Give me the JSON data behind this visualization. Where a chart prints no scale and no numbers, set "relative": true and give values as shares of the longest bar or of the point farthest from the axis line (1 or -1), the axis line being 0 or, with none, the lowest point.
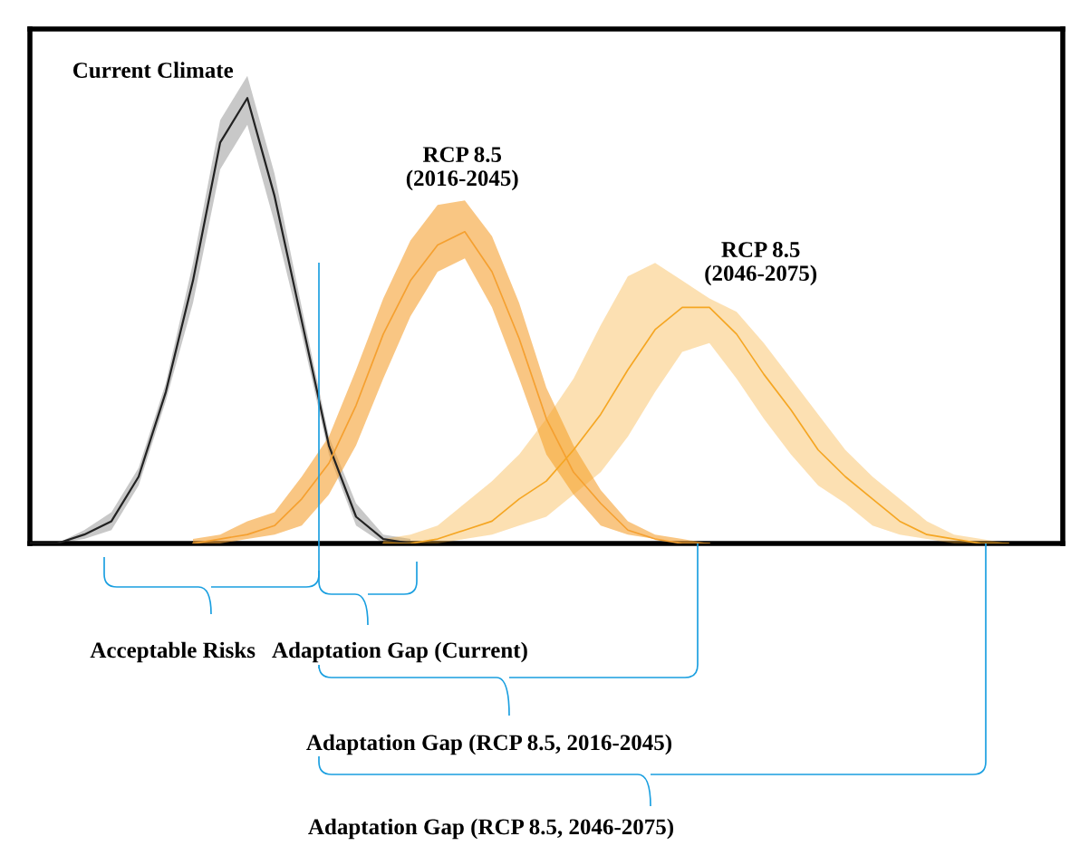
{
  "chart_data": {
    "type": "line",
    "relative": true,
    "grid": false,
    "categories": [
      null,
      null,
      null,
      null,
      null,
      null,
      null,
      null,
      null,
      null,
      null,
      null,
      null,
      null,
      null,
      null,
      null,
      null,
      null,
      null,
      null,
      null,
      null,
      null,
      null,
      null,
      null,
      null,
      null,
      null,
      null,
      null,
      null,
      null,
      null,
      null,
      null,
      null,
      null
    ],
    "series": [
      {
        "name": "Current Climate",
        "color": "#222222",
        "values": [
          0,
          0,
          0.02,
          0.05,
          0.15,
          0.34,
          0.59,
          0.9,
          1,
          0.78,
          0.5,
          0.22,
          0.06,
          0.01,
          0,
          null,
          null,
          null,
          null,
          null,
          null,
          null,
          null,
          null,
          null,
          null,
          null,
          null,
          null,
          null,
          null,
          null,
          null,
          null,
          null,
          null,
          null,
          null,
          null
        ],
        "upper": [
          0,
          0,
          0.03,
          0.07,
          0.17,
          0.36,
          0.63,
          0.95,
          1.05,
          0.83,
          0.53,
          0.24,
          0.09,
          0.02,
          0.01,
          null,
          null,
          null,
          null,
          null,
          null,
          null,
          null,
          null,
          null,
          null,
          null,
          null,
          null,
          null,
          null,
          null,
          null,
          null,
          null,
          null,
          null,
          null,
          null
        ],
        "lower": [
          0,
          0,
          0.01,
          0.03,
          0.13,
          0.32,
          0.54,
          0.84,
          0.94,
          0.72,
          0.47,
          0.2,
          0.04,
          0,
          0,
          null,
          null,
          null,
          null,
          null,
          null,
          null,
          null,
          null,
          null,
          null,
          null,
          null,
          null,
          null,
          null,
          null,
          null,
          null,
          null,
          null,
          null,
          null,
          null
        ]
      },
      {
        "name": "RCP 8.5\n(2016-2045)",
        "color": "#f5a030",
        "values": [
          null,
          null,
          null,
          null,
          null,
          null,
          0,
          0.01,
          0.02,
          0.04,
          0.1,
          0.18,
          0.31,
          0.47,
          0.59,
          0.67,
          0.7,
          0.61,
          0.46,
          0.28,
          0.16,
          0.09,
          0.03,
          0.01,
          0,
          0,
          null,
          null,
          null,
          null,
          null,
          null,
          null,
          null,
          null,
          null,
          null,
          null,
          null
        ],
        "upper": [
          null,
          null,
          null,
          null,
          null,
          null,
          0.01,
          0.02,
          0.05,
          0.07,
          0.15,
          0.24,
          0.39,
          0.55,
          0.68,
          0.76,
          0.77,
          0.69,
          0.54,
          0.35,
          0.22,
          0.12,
          0.05,
          0.02,
          0.01,
          0,
          null,
          null,
          null,
          null,
          null,
          null,
          null,
          null,
          null,
          null,
          null,
          null,
          null
        ],
        "lower": [
          null,
          null,
          null,
          null,
          null,
          null,
          0,
          0,
          0.01,
          0.02,
          0.04,
          0.11,
          0.22,
          0.37,
          0.51,
          0.61,
          0.64,
          0.53,
          0.37,
          0.2,
          0.11,
          0.04,
          0.02,
          0.01,
          0,
          0,
          null,
          null,
          null,
          null,
          null,
          null,
          null,
          null,
          null,
          null,
          null,
          null,
          null
        ]
      },
      {
        "name": "RCP 8.5\n(2046-2075)",
        "color": "#f5a623",
        "values": [
          null,
          null,
          null,
          null,
          null,
          null,
          null,
          null,
          null,
          null,
          null,
          null,
          null,
          0,
          0,
          0.01,
          0.03,
          0.05,
          0.1,
          0.14,
          0.21,
          0.29,
          0.39,
          0.48,
          0.53,
          0.53,
          0.47,
          0.38,
          0.3,
          0.21,
          0.15,
          0.1,
          0.05,
          0.02,
          0.01,
          0,
          0,
          null,
          null
        ],
        "upper": [
          null,
          null,
          null,
          null,
          null,
          null,
          null,
          null,
          null,
          null,
          null,
          null,
          null,
          0.01,
          0.02,
          0.04,
          0.09,
          0.14,
          0.2,
          0.28,
          0.37,
          0.49,
          0.6,
          0.63,
          0.59,
          0.55,
          0.52,
          0.45,
          0.37,
          0.29,
          0.21,
          0.15,
          0.1,
          0.05,
          0.02,
          0.01,
          0,
          null,
          null
        ],
        "lower": [
          null,
          null,
          null,
          null,
          null,
          null,
          null,
          null,
          null,
          null,
          null,
          null,
          null,
          0,
          0,
          0,
          0.01,
          0.02,
          0.04,
          0.06,
          0.11,
          0.16,
          0.24,
          0.34,
          0.43,
          0.45,
          0.37,
          0.28,
          0.2,
          0.13,
          0.09,
          0.04,
          0.02,
          0.01,
          0,
          0,
          0,
          null,
          null
        ]
      }
    ],
    "annotations": [
      "Acceptable Risks",
      "Adaptation Gap (Current)",
      "Adaptation Gap (RCP 8.5, 2016-2045)",
      "Adaptation Gap (RCP 8.5, 2046-2075)"
    ]
  }
}
